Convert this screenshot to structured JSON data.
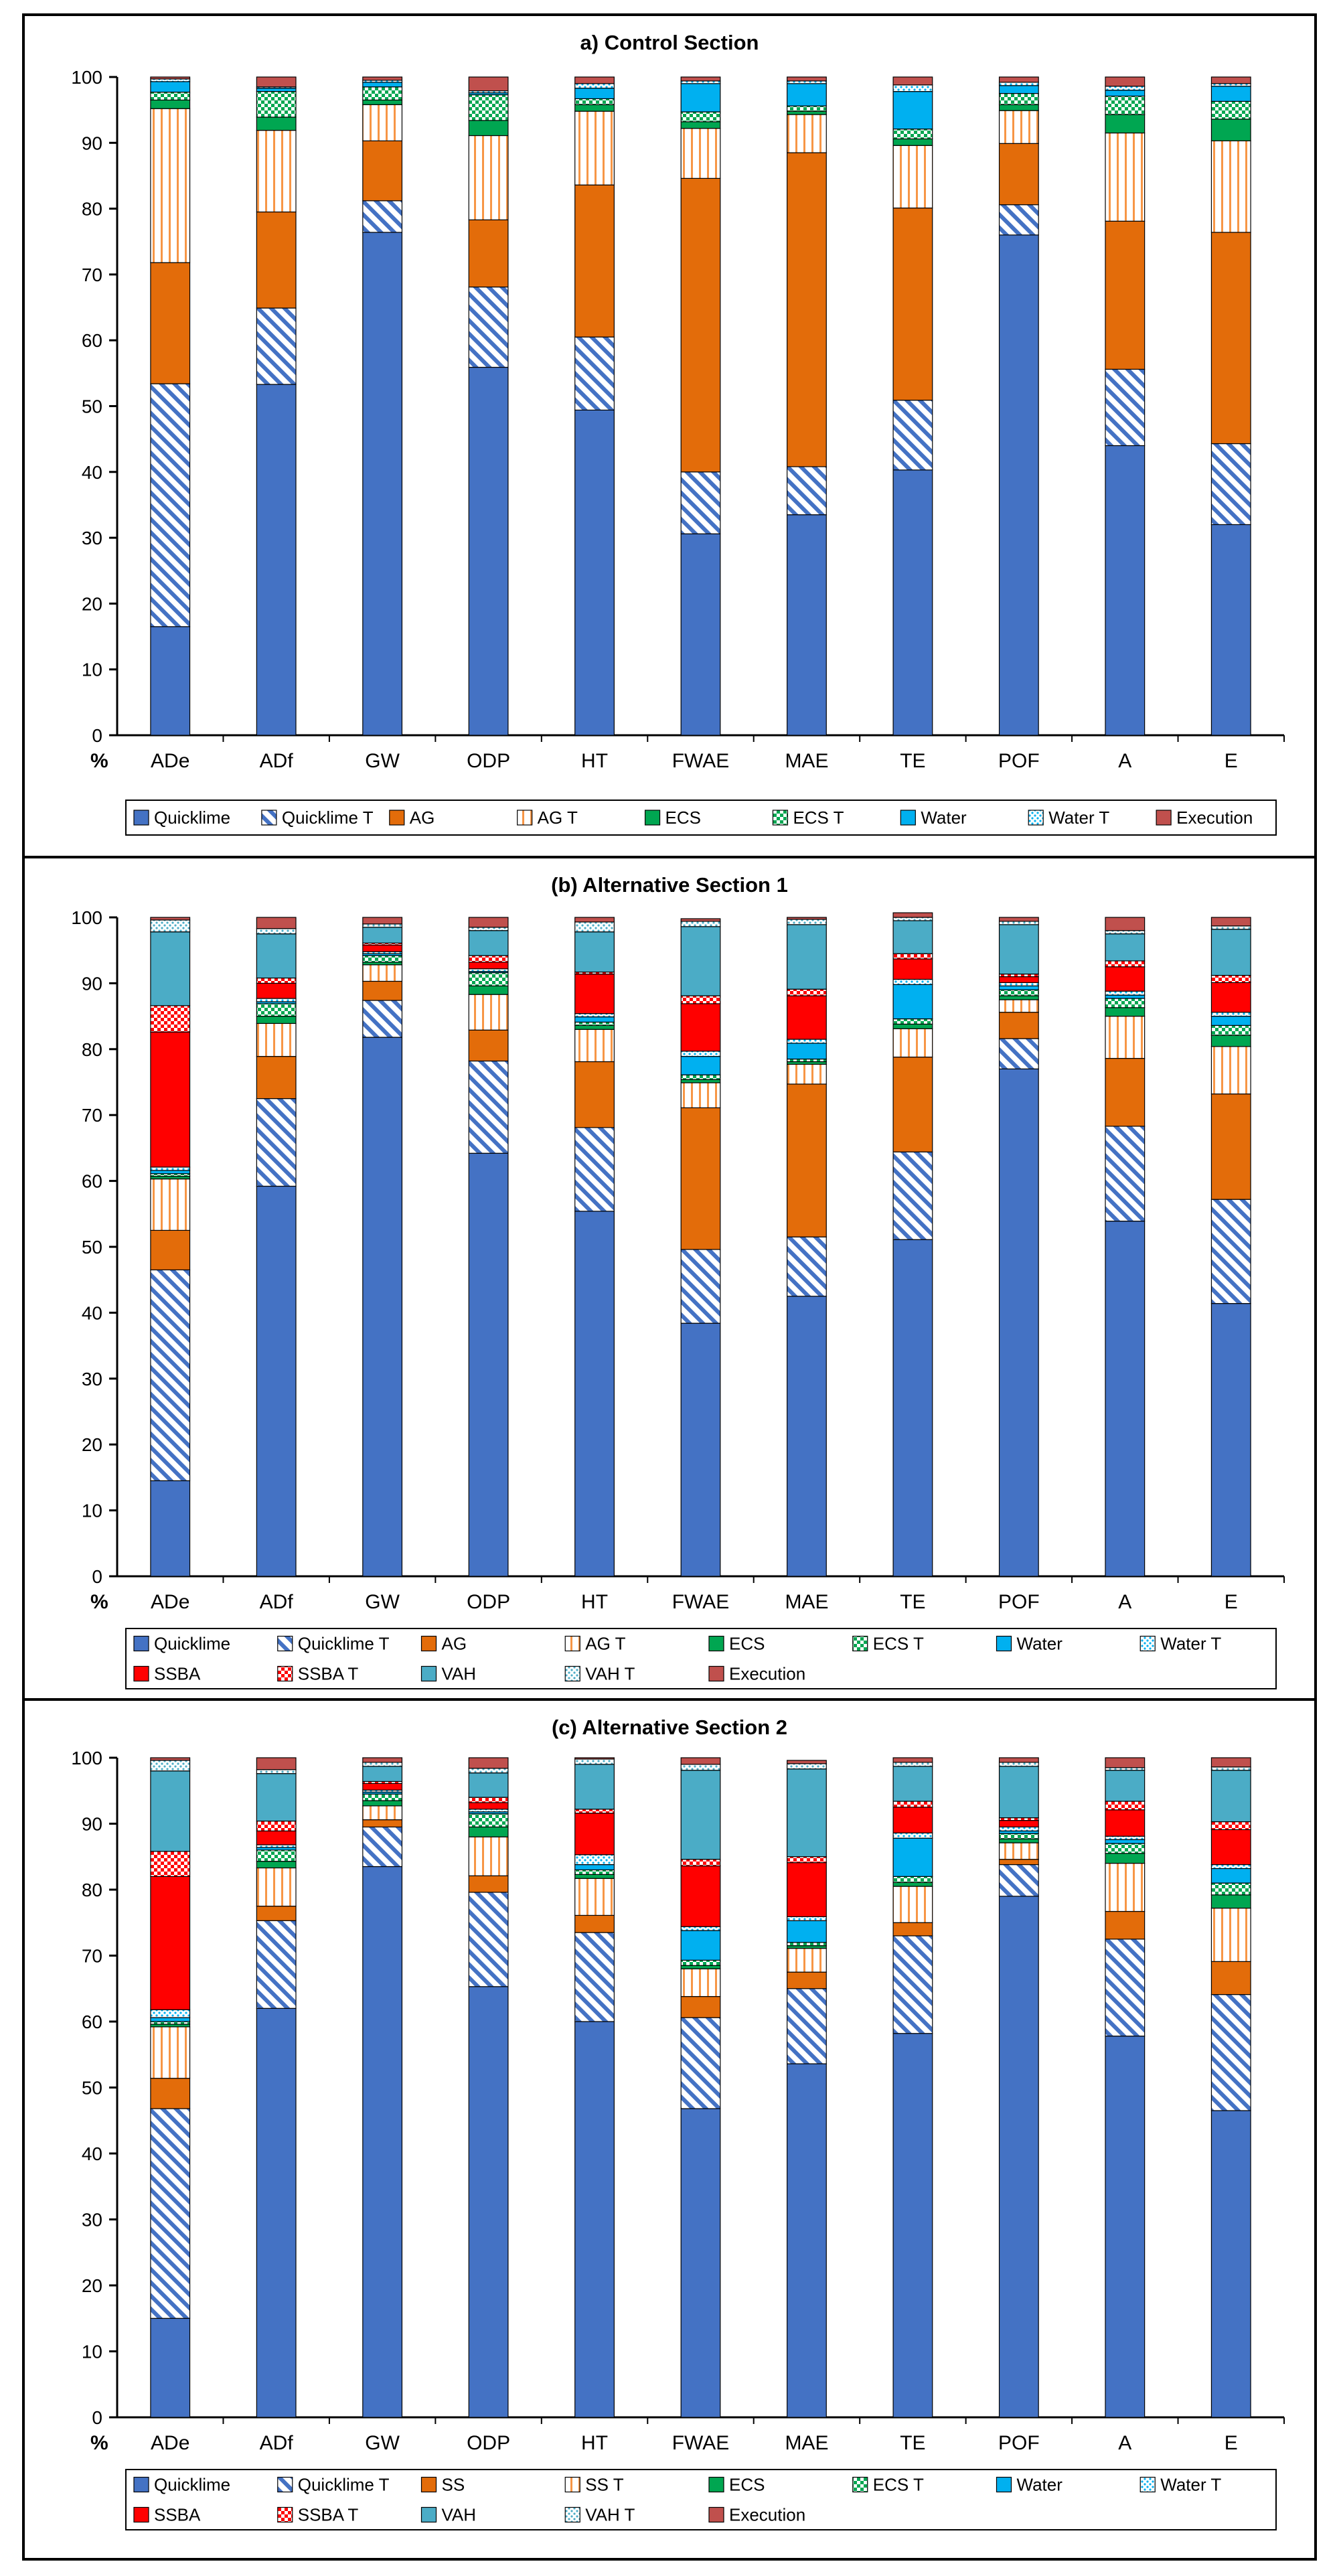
{
  "chart_data": [
    {
      "type": "bar",
      "stacked": true,
      "title": "a) Control Section",
      "y_unit_label": "%",
      "ylim": [
        0,
        100
      ],
      "yticks": [
        0,
        10,
        20,
        30,
        40,
        50,
        60,
        70,
        80,
        90,
        100
      ],
      "categories": [
        "ADe",
        "ADf",
        "GW",
        "ODP",
        "HT",
        "FWAE",
        "MAE",
        "TE",
        "POF",
        "A",
        "E"
      ],
      "legend_position": "bottom",
      "series": [
        {
          "name": "Quicklime",
          "color": "#4472C4",
          "pattern": "solid",
          "values": [
            16.5,
            53.3,
            76.4,
            55.9,
            49.4,
            30.6,
            33.5,
            40.3,
            76.0,
            44.0,
            32.0
          ]
        },
        {
          "name": "Quicklime T",
          "color": "#4472C4",
          "pattern": "diag",
          "values": [
            36.9,
            11.6,
            4.8,
            12.2,
            11.1,
            9.4,
            7.3,
            10.6,
            4.6,
            11.6,
            12.3
          ]
        },
        {
          "name": "AG",
          "color": "#E36C0A",
          "pattern": "solid",
          "values": [
            18.4,
            14.6,
            9.1,
            10.2,
            23.1,
            44.6,
            47.7,
            29.2,
            9.3,
            22.5,
            32.1
          ]
        },
        {
          "name": "AG T",
          "color": "#F79646",
          "pattern": "vline",
          "values": [
            23.4,
            12.4,
            5.5,
            12.8,
            11.2,
            7.6,
            5.8,
            9.5,
            5.0,
            13.4,
            13.9
          ]
        },
        {
          "name": "ECS",
          "color": "#00A651",
          "pattern": "solid",
          "values": [
            1.3,
            2.0,
            0.7,
            2.3,
            1.0,
            1.0,
            0.5,
            1.0,
            0.9,
            2.8,
            3.3
          ]
        },
        {
          "name": "ECS T",
          "color": "#00A651",
          "pattern": "check",
          "values": [
            1.2,
            3.9,
            2.0,
            3.9,
            0.9,
            1.5,
            0.8,
            1.5,
            1.7,
            2.8,
            2.7
          ]
        },
        {
          "name": "Water",
          "color": "#00B0F0",
          "pattern": "solid",
          "values": [
            1.6,
            0.5,
            0.7,
            0.3,
            1.6,
            4.3,
            3.4,
            5.7,
            1.2,
            0.9,
            2.3
          ]
        },
        {
          "name": "Water T",
          "color": "#00B0F0",
          "pattern": "dots",
          "values": [
            0.4,
            0.2,
            0.3,
            0.3,
            0.7,
            0.4,
            0.4,
            1.0,
            0.5,
            0.6,
            0.4
          ]
        },
        {
          "name": "Execution",
          "color": "#C0504D",
          "pattern": "solid",
          "values": [
            0.3,
            1.5,
            0.5,
            2.1,
            1.0,
            0.6,
            0.6,
            1.2,
            0.8,
            1.4,
            1.0
          ]
        }
      ]
    },
    {
      "type": "bar",
      "stacked": true,
      "title": "(b) Alternative Section 1",
      "y_unit_label": "%",
      "ylim": [
        0,
        100
      ],
      "yticks": [
        0,
        10,
        20,
        30,
        40,
        50,
        60,
        70,
        80,
        90,
        100
      ],
      "categories": [
        "ADe",
        "ADf",
        "GW",
        "ODP",
        "HT",
        "FWAE",
        "MAE",
        "TE",
        "POF",
        "A",
        "E"
      ],
      "legend_position": "bottom",
      "series": [
        {
          "name": "Quicklime",
          "color": "#4472C4",
          "pattern": "solid",
          "values": [
            14.5,
            59.2,
            81.8,
            64.2,
            55.4,
            38.4,
            42.5,
            51.1,
            77.0,
            53.9,
            41.4
          ]
        },
        {
          "name": "Quicklime T",
          "color": "#4472C4",
          "pattern": "diag",
          "values": [
            32.0,
            13.3,
            5.6,
            14.0,
            12.7,
            11.2,
            9.0,
            13.3,
            4.6,
            14.4,
            15.8
          ]
        },
        {
          "name": "AG",
          "color": "#E36C0A",
          "pattern": "solid",
          "values": [
            6.0,
            6.4,
            2.9,
            4.7,
            10.0,
            21.5,
            23.2,
            14.4,
            4.0,
            10.3,
            16.0
          ]
        },
        {
          "name": "AG T",
          "color": "#F79646",
          "pattern": "vline",
          "values": [
            7.8,
            5.0,
            2.5,
            5.4,
            4.9,
            3.8,
            3.0,
            4.3,
            1.9,
            6.4,
            7.2
          ]
        },
        {
          "name": "ECS",
          "color": "#00A651",
          "pattern": "solid",
          "values": [
            0.4,
            1.1,
            0.4,
            1.3,
            0.6,
            0.5,
            0.4,
            0.7,
            0.6,
            1.3,
            1.7
          ]
        },
        {
          "name": "ECS T",
          "color": "#00A651",
          "pattern": "check",
          "values": [
            0.4,
            1.9,
            1.0,
            2.0,
            0.5,
            0.7,
            0.4,
            0.8,
            0.9,
            1.4,
            1.5
          ]
        },
        {
          "name": "Water",
          "color": "#00B0F0",
          "pattern": "solid",
          "values": [
            0.5,
            0.3,
            0.3,
            0.2,
            0.8,
            2.8,
            2.4,
            5.2,
            0.6,
            0.5,
            1.4
          ]
        },
        {
          "name": "Water T",
          "color": "#00B0F0",
          "pattern": "dots",
          "values": [
            0.5,
            0.5,
            0.3,
            0.4,
            0.5,
            0.8,
            0.6,
            0.8,
            0.5,
            0.6,
            0.6
          ]
        },
        {
          "name": "SSBA",
          "color": "#FF0000",
          "pattern": "solid",
          "values": [
            20.5,
            2.3,
            1.0,
            1.0,
            6.0,
            7.2,
            6.6,
            3.1,
            0.9,
            3.7,
            4.5
          ]
        },
        {
          "name": "SSBA T",
          "color": "#FF0000",
          "pattern": "check",
          "values": [
            4.0,
            0.8,
            0.3,
            1.0,
            0.3,
            1.2,
            1.0,
            0.8,
            0.4,
            0.9,
            1.1
          ]
        },
        {
          "name": "VAH",
          "color": "#4BACC6",
          "pattern": "solid",
          "values": [
            11.2,
            6.7,
            2.4,
            3.8,
            6.1,
            10.5,
            9.8,
            5.0,
            7.5,
            4.1,
            7.0
          ]
        },
        {
          "name": "VAH T",
          "color": "#4BACC6",
          "pattern": "dots",
          "values": [
            1.8,
            0.8,
            0.5,
            0.5,
            1.5,
            0.8,
            0.8,
            0.5,
            0.5,
            0.5,
            0.5
          ]
        },
        {
          "name": "Execution",
          "color": "#C0504D",
          "pattern": "solid",
          "values": [
            0.4,
            1.7,
            1.0,
            1.5,
            0.7,
            0.4,
            0.3,
            0.7,
            0.6,
            2.0,
            1.3
          ]
        }
      ]
    },
    {
      "type": "bar",
      "stacked": true,
      "title": "(c) Alternative Section 2",
      "y_unit_label": "%",
      "ylim": [
        0,
        100
      ],
      "yticks": [
        0,
        10,
        20,
        30,
        40,
        50,
        60,
        70,
        80,
        90,
        100
      ],
      "categories": [
        "ADe",
        "ADf",
        "GW",
        "ODP",
        "HT",
        "FWAE",
        "MAE",
        "TE",
        "POF",
        "A",
        "E"
      ],
      "legend_position": "bottom",
      "series": [
        {
          "name": "Quicklime",
          "color": "#4472C4",
          "pattern": "solid",
          "values": [
            15.0,
            62.0,
            83.5,
            65.3,
            60.0,
            46.8,
            53.6,
            58.2,
            79.0,
            57.8,
            46.5
          ]
        },
        {
          "name": "Quicklime T",
          "color": "#4472C4",
          "pattern": "diag",
          "values": [
            31.8,
            13.3,
            6.0,
            14.3,
            13.5,
            13.8,
            11.4,
            14.8,
            4.8,
            14.7,
            17.6
          ]
        },
        {
          "name": "SS",
          "color": "#E36C0A",
          "pattern": "solid",
          "values": [
            4.6,
            2.2,
            1.1,
            2.5,
            2.6,
            3.2,
            2.5,
            2.0,
            0.8,
            4.2,
            5.0
          ]
        },
        {
          "name": "SS T",
          "color": "#F79646",
          "pattern": "vline",
          "values": [
            7.8,
            5.8,
            2.1,
            5.9,
            5.6,
            4.2,
            3.6,
            5.5,
            2.5,
            7.3,
            8.1
          ]
        },
        {
          "name": "ECS",
          "color": "#00A651",
          "pattern": "solid",
          "values": [
            0.4,
            1.0,
            0.8,
            1.5,
            0.6,
            0.5,
            0.4,
            0.6,
            0.6,
            1.5,
            2.0
          ]
        },
        {
          "name": "ECS T",
          "color": "#00A651",
          "pattern": "check",
          "values": [
            0.4,
            1.7,
            1.0,
            2.0,
            0.7,
            0.8,
            0.5,
            0.9,
            0.8,
            1.5,
            1.8
          ]
        },
        {
          "name": "Water",
          "color": "#00B0F0",
          "pattern": "solid",
          "values": [
            0.6,
            0.4,
            0.3,
            0.3,
            0.8,
            4.5,
            3.3,
            5.8,
            0.4,
            0.6,
            2.2
          ]
        },
        {
          "name": "Water T",
          "color": "#00B0F0",
          "pattern": "dots",
          "values": [
            1.2,
            0.4,
            0.3,
            0.4,
            1.5,
            0.6,
            0.6,
            0.8,
            0.6,
            0.5,
            0.6
          ]
        },
        {
          "name": "SSBA",
          "color": "#FF0000",
          "pattern": "solid",
          "values": [
            20.2,
            2.1,
            1.0,
            1.0,
            6.3,
            9.2,
            8.2,
            3.9,
            1.0,
            4.0,
            5.3
          ]
        },
        {
          "name": "SSBA T",
          "color": "#FF0000",
          "pattern": "check",
          "values": [
            3.8,
            1.5,
            0.3,
            0.8,
            0.6,
            1.0,
            0.9,
            0.9,
            0.4,
            1.3,
            1.2
          ]
        },
        {
          "name": "VAH",
          "color": "#4BACC6",
          "pattern": "solid",
          "values": [
            12.2,
            7.2,
            2.3,
            3.7,
            6.8,
            13.5,
            13.3,
            5.3,
            7.8,
            4.7,
            7.8
          ]
        },
        {
          "name": "VAH T",
          "color": "#4BACC6",
          "pattern": "dots",
          "values": [
            1.6,
            0.6,
            0.6,
            0.7,
            0.8,
            0.9,
            0.8,
            0.6,
            0.6,
            0.4,
            0.5
          ]
        },
        {
          "name": "Execution",
          "color": "#C0504D",
          "pattern": "solid",
          "values": [
            0.4,
            1.8,
            0.7,
            1.6,
            0.2,
            1.0,
            0.5,
            0.7,
            0.7,
            1.5,
            1.4
          ]
        }
      ]
    }
  ]
}
